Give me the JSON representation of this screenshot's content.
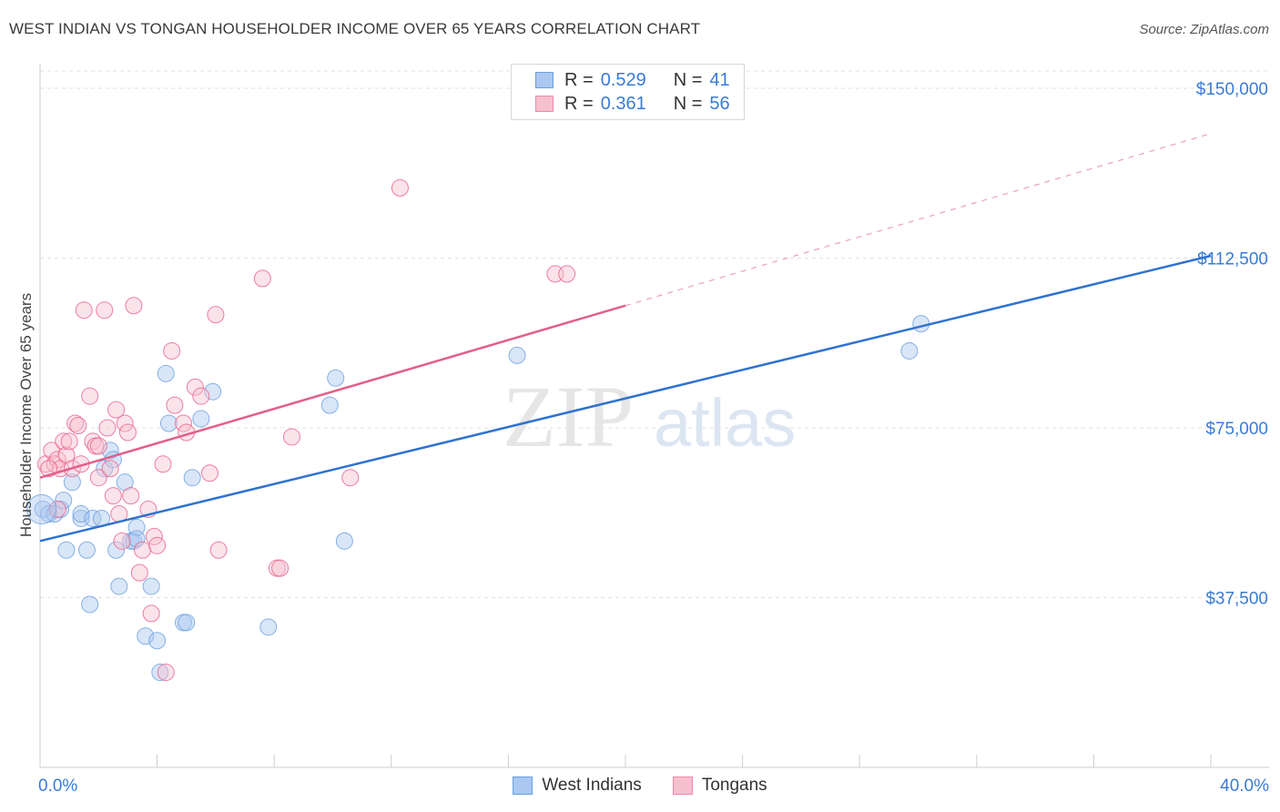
{
  "header": {
    "title": "WEST INDIAN VS TONGAN HOUSEHOLDER INCOME OVER 65 YEARS CORRELATION CHART",
    "source": "Source: ZipAtlas.com"
  },
  "watermark": {
    "part1": "ZIP",
    "part2": "atlas"
  },
  "legend": {
    "r_label": "R =",
    "n_label": "N =",
    "rows": [
      {
        "r": "0.529",
        "n": "41",
        "fill": "#aac8f0",
        "stroke": "#6a9fe0"
      },
      {
        "r": "0.361",
        "n": "56",
        "fill": "#f7c0d0",
        "stroke": "#ee8aaa"
      }
    ]
  },
  "bottom_legend": [
    {
      "label": "West Indians",
      "fill": "#aac8f0",
      "stroke": "#6a9fe0"
    },
    {
      "label": "Tongans",
      "fill": "#f7c0d0",
      "stroke": "#ee8aaa"
    }
  ],
  "chart_data": {
    "type": "scatter",
    "title": "WEST INDIAN VS TONGAN HOUSEHOLDER INCOME OVER 65 YEARS CORRELATION CHART",
    "xlabel": "",
    "ylabel": "Householder Income Over 65 years",
    "xlim": [
      0,
      40
    ],
    "ylim": [
      0,
      155000
    ],
    "x_tick_labels": [
      "0.0%",
      "40.0%"
    ],
    "y_ticks": [
      37500,
      75000,
      112500,
      150000
    ],
    "y_tick_labels": [
      "$37,500",
      "$75,000",
      "$112,500",
      "$150,000"
    ],
    "grid": true,
    "series": [
      {
        "name": "West Indians",
        "color": "#6a9fe0",
        "fill": "#aac8f0",
        "r": 0.529,
        "n": 41,
        "trend": {
          "x": [
            0,
            40
          ],
          "y": [
            50000,
            113000
          ]
        },
        "points": [
          [
            0.1,
            57000
          ],
          [
            0.3,
            56000
          ],
          [
            0.5,
            56000
          ],
          [
            0.7,
            57000
          ],
          [
            0.8,
            59000
          ],
          [
            0.9,
            48000
          ],
          [
            1.1,
            63000
          ],
          [
            1.4,
            55000
          ],
          [
            1.4,
            56000
          ],
          [
            1.6,
            48000
          ],
          [
            1.7,
            36000
          ],
          [
            1.8,
            55000
          ],
          [
            2.1,
            55000
          ],
          [
            2.2,
            66000
          ],
          [
            2.4,
            70000
          ],
          [
            2.5,
            68000
          ],
          [
            2.6,
            48000
          ],
          [
            2.7,
            40000
          ],
          [
            2.9,
            63000
          ],
          [
            3.1,
            50000
          ],
          [
            3.2,
            50000
          ],
          [
            3.3,
            53000
          ],
          [
            3.6,
            29000
          ],
          [
            3.8,
            40000
          ],
          [
            4.0,
            28000
          ],
          [
            4.3,
            87000
          ],
          [
            4.4,
            76000
          ],
          [
            4.9,
            32000
          ],
          [
            5.0,
            32000
          ],
          [
            5.2,
            64000
          ],
          [
            5.5,
            77000
          ],
          [
            5.9,
            83000
          ],
          [
            7.8,
            31000
          ],
          [
            9.9,
            80000
          ],
          [
            10.1,
            86000
          ],
          [
            10.4,
            50000
          ],
          [
            16.3,
            91000
          ],
          [
            29.7,
            92000
          ],
          [
            30.1,
            98000
          ],
          [
            4.1,
            21000
          ],
          [
            3.3,
            50500
          ]
        ]
      },
      {
        "name": "Tongans",
        "color": "#e8608c",
        "fill": "#f7c0d0",
        "r": 0.361,
        "n": 56,
        "trend": {
          "x": [
            0,
            20
          ],
          "y": [
            64000,
            102000
          ],
          "dashed_x": [
            20,
            40
          ],
          "dashed_y": [
            102000,
            140000
          ]
        },
        "points": [
          [
            0.2,
            67000
          ],
          [
            0.4,
            70000
          ],
          [
            0.5,
            67000
          ],
          [
            0.6,
            68000
          ],
          [
            0.7,
            66000
          ],
          [
            0.8,
            72000
          ],
          [
            0.9,
            69000
          ],
          [
            1.0,
            72000
          ],
          [
            1.1,
            66000
          ],
          [
            1.2,
            76000
          ],
          [
            1.4,
            67000
          ],
          [
            1.5,
            101000
          ],
          [
            1.7,
            82000
          ],
          [
            1.8,
            72000
          ],
          [
            1.9,
            71000
          ],
          [
            2.0,
            71000
          ],
          [
            2.0,
            64000
          ],
          [
            2.2,
            101000
          ],
          [
            2.3,
            75000
          ],
          [
            2.4,
            66000
          ],
          [
            2.5,
            60000
          ],
          [
            2.6,
            79000
          ],
          [
            2.7,
            56000
          ],
          [
            2.8,
            50000
          ],
          [
            2.9,
            76000
          ],
          [
            3.0,
            74000
          ],
          [
            3.1,
            60000
          ],
          [
            3.2,
            102000
          ],
          [
            3.4,
            43000
          ],
          [
            3.5,
            48000
          ],
          [
            3.7,
            57000
          ],
          [
            3.8,
            34000
          ],
          [
            3.9,
            51000
          ],
          [
            4.0,
            49000
          ],
          [
            4.2,
            67000
          ],
          [
            4.3,
            21000
          ],
          [
            4.5,
            92000
          ],
          [
            4.6,
            80000
          ],
          [
            4.9,
            76000
          ],
          [
            5.0,
            74000
          ],
          [
            5.3,
            84000
          ],
          [
            5.5,
            82000
          ],
          [
            5.8,
            65000
          ],
          [
            6.0,
            100000
          ],
          [
            6.1,
            48000
          ],
          [
            7.6,
            108000
          ],
          [
            8.1,
            44000
          ],
          [
            8.2,
            44000
          ],
          [
            8.6,
            73000
          ],
          [
            10.6,
            64000
          ],
          [
            12.3,
            128000
          ],
          [
            17.6,
            109000
          ],
          [
            18.0,
            109000
          ],
          [
            0.3,
            66000
          ],
          [
            0.6,
            57000
          ],
          [
            1.3,
            75500
          ]
        ]
      }
    ]
  }
}
